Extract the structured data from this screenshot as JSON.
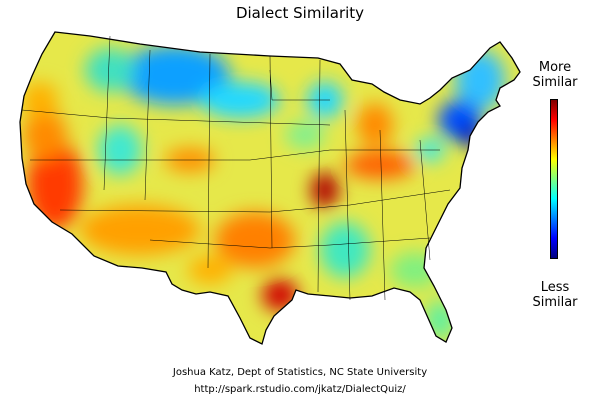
{
  "title": "Dialect Similarity",
  "legend": {
    "high_label": "More\nSimilar",
    "low_label": "Less\nSimilar",
    "color_stops": [
      "#00007f",
      "#0000ff",
      "#007fff",
      "#00ffff",
      "#7fff7f",
      "#ffff00",
      "#ff7f00",
      "#ff0000",
      "#7f0000"
    ]
  },
  "credit": {
    "line1": "Joshua Katz, Dept of Statistics, NC State University",
    "line2": "http://spark.rstudio.com/jkatz/DialectQuiz/"
  },
  "colors": {
    "base": "#e6e84a",
    "border": "#000000",
    "background": "#ffffff"
  }
}
